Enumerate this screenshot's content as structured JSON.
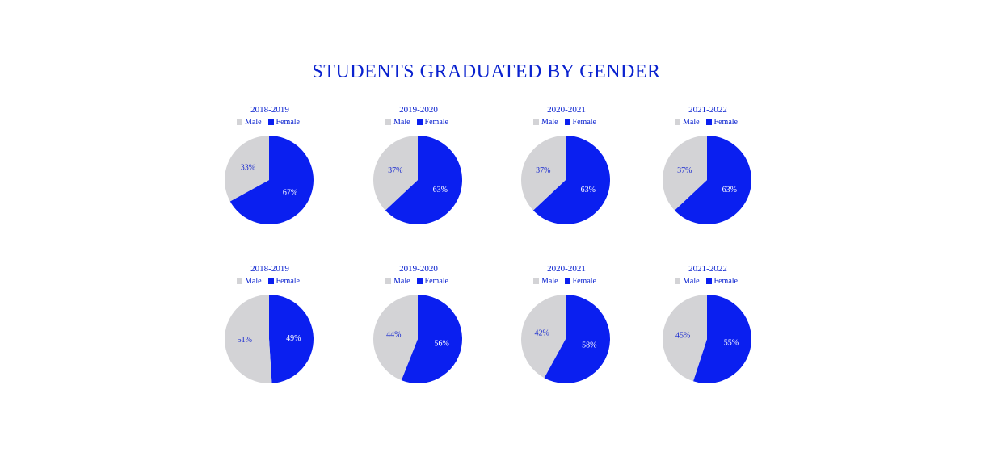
{
  "title": "STUDENTS GRADUATED BY GENDER",
  "colors": {
    "title": "#0a22cf",
    "male": "#d3d3d6",
    "female": "#0a1ff0",
    "label_on_male": "#1a2bd0",
    "label_on_female": "#ffffff"
  },
  "legend": {
    "male": "Male",
    "female": "Female"
  },
  "chart_data": [
    {
      "type": "pie",
      "title": "2018-2019",
      "categories": [
        "Male",
        "Female"
      ],
      "values": [
        33,
        67
      ],
      "labels": [
        "33%",
        "67%"
      ]
    },
    {
      "type": "pie",
      "title": "2019-2020",
      "categories": [
        "Male",
        "Female"
      ],
      "values": [
        37,
        63
      ],
      "labels": [
        "37%",
        "63%"
      ]
    },
    {
      "type": "pie",
      "title": "2020-2021",
      "categories": [
        "Male",
        "Female"
      ],
      "values": [
        37,
        63
      ],
      "labels": [
        "37%",
        "63%"
      ]
    },
    {
      "type": "pie",
      "title": "2021-2022",
      "categories": [
        "Male",
        "Female"
      ],
      "values": [
        37,
        63
      ],
      "labels": [
        "37%",
        "63%"
      ]
    },
    {
      "type": "pie",
      "title": "2018-2019",
      "categories": [
        "Male",
        "Female"
      ],
      "values": [
        51,
        49
      ],
      "labels": [
        "51%",
        "49%"
      ]
    },
    {
      "type": "pie",
      "title": "2019-2020",
      "categories": [
        "Male",
        "Female"
      ],
      "values": [
        44,
        56
      ],
      "labels": [
        "44%",
        "56%"
      ]
    },
    {
      "type": "pie",
      "title": "2020-2021",
      "categories": [
        "Male",
        "Female"
      ],
      "values": [
        42,
        58
      ],
      "labels": [
        "42%",
        "58%"
      ]
    },
    {
      "type": "pie",
      "title": "2021-2022",
      "categories": [
        "Male",
        "Female"
      ],
      "values": [
        45,
        55
      ],
      "labels": [
        "45%",
        "55%"
      ]
    }
  ]
}
